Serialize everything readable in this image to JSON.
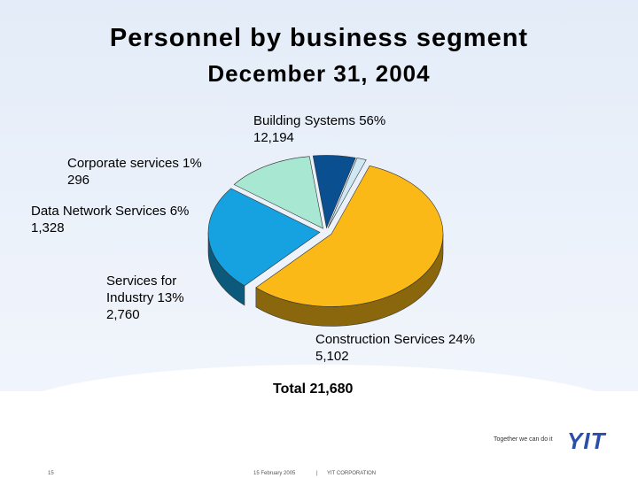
{
  "title": "Personnel by business segment",
  "subtitle": "December 31, 2004",
  "chart_data": {
    "type": "pie",
    "title": "Personnel by business segment",
    "subtitle": "December 31, 2004",
    "slices": [
      {
        "label": "Building Systems",
        "percent": "56%",
        "value": 12194,
        "value_label": "12,194",
        "color": "#fbb917"
      },
      {
        "label": "Construction Services",
        "percent": "24%",
        "value": 5102,
        "value_label": "5,102",
        "color": "#16a1e0"
      },
      {
        "label": "Services for Industry",
        "percent": "13%",
        "value": 2760,
        "value_label": "2,760",
        "color": "#a8e8d2"
      },
      {
        "label": "Data Network Services",
        "percent": "6%",
        "value": 1328,
        "value_label": "1,328",
        "color": "#0a4f8f"
      },
      {
        "label": "Corporate services",
        "percent": "1%",
        "value": 296,
        "value_label": "296",
        "color": "#cfe8f3"
      }
    ],
    "total_label": "Total 21,680"
  },
  "labels": {
    "building_name": "Building Systems 56%",
    "building_value": "12,194",
    "corporate_name": "Corporate services 1%",
    "corporate_value": "296",
    "datanet_name": "Data Network Services 6%",
    "datanet_value": "1,328",
    "services_line1": "Services for",
    "services_line2": "Industry 13%",
    "services_value": "2,760",
    "construction_name": "Construction Services 24%",
    "construction_value": "5,102"
  },
  "footer": {
    "tagline": "Together we can do it",
    "logo": "YIT",
    "page_number": "15",
    "date": "15 February 2005",
    "separator": "|",
    "company": "YIT CORPORATION"
  }
}
